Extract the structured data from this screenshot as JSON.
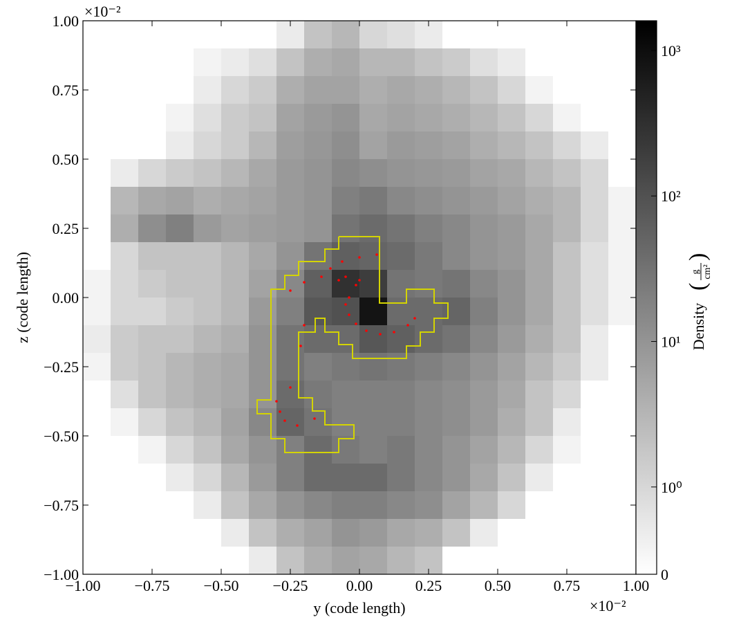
{
  "chart_data": {
    "type": "heatmap",
    "x_label": "y  (code length)",
    "y_label": "z  (code length)",
    "x_offset_label": "×10⁻²",
    "y_offset_label": "×10⁻²",
    "xlim": [
      -1.0,
      1.0
    ],
    "ylim": [
      -1.0,
      1.0
    ],
    "xticks": [
      {
        "value": -1.0,
        "label": "−1.00"
      },
      {
        "value": -0.75,
        "label": "−0.75"
      },
      {
        "value": -0.5,
        "label": "−0.50"
      },
      {
        "value": -0.25,
        "label": "−0.25"
      },
      {
        "value": 0,
        "label": "0.00"
      },
      {
        "value": 0.25,
        "label": "0.25"
      },
      {
        "value": 0.5,
        "label": "0.50"
      },
      {
        "value": 0.75,
        "label": "0.75"
      },
      {
        "value": 1.0,
        "label": "1.00"
      }
    ],
    "yticks": [
      {
        "value": -1.0,
        "label": "−1.00"
      },
      {
        "value": -0.75,
        "label": "−0.75"
      },
      {
        "value": -0.5,
        "label": "−0.50"
      },
      {
        "value": -0.25,
        "label": "−0.25"
      },
      {
        "value": 0,
        "label": "0.00"
      },
      {
        "value": 0.25,
        "label": "0.25"
      },
      {
        "value": 0.5,
        "label": "0.50"
      },
      {
        "value": 0.75,
        "label": "0.75"
      },
      {
        "value": 1.0,
        "label": "1.00"
      }
    ],
    "colorbar": {
      "label": "Density",
      "units_numerator": "g",
      "units_denominator": "cm²",
      "scale": "symlog",
      "lim": [
        0,
        1600
      ],
      "ticks": [
        0,
        {
          "value": 1,
          "label": "10⁰"
        },
        {
          "value": 10,
          "label": "10¹"
        },
        {
          "value": 100,
          "label": "10²"
        },
        {
          "value": 1000,
          "label": "10³"
        }
      ]
    },
    "values": [
      [
        0,
        0,
        0,
        0,
        0,
        0,
        0,
        0.5,
        2,
        3,
        1,
        0.8,
        0.5,
        0,
        0,
        0,
        0,
        0,
        0,
        0
      ],
      [
        0,
        0,
        0,
        0,
        0.3,
        0.5,
        0.8,
        2,
        4,
        5,
        3,
        3,
        2,
        1.5,
        0.8,
        0.5,
        0,
        0,
        0,
        0
      ],
      [
        0,
        0,
        0,
        0,
        0.5,
        1,
        1.5,
        4,
        6,
        6,
        4,
        5,
        4,
        3,
        2,
        1,
        0.3,
        0,
        0,
        0
      ],
      [
        0,
        0,
        0,
        0.3,
        0.8,
        1.5,
        2,
        6,
        8,
        10,
        5,
        6,
        5,
        4,
        3,
        2,
        1,
        0.3,
        0,
        0
      ],
      [
        0,
        0,
        0,
        0.5,
        1,
        1.5,
        3,
        7,
        9,
        12,
        6,
        8,
        7,
        6,
        4,
        3,
        2,
        1,
        0.5,
        0
      ],
      [
        0,
        0.5,
        1,
        1.5,
        2,
        3,
        5,
        8,
        10,
        15,
        12,
        10,
        9,
        8,
        6,
        5,
        3,
        2,
        1,
        0
      ],
      [
        0,
        3,
        5,
        6,
        4,
        5,
        6,
        8,
        10,
        20,
        25,
        15,
        12,
        10,
        8,
        6,
        4,
        3,
        1,
        0.3
      ],
      [
        0,
        4,
        12,
        20,
        8,
        6,
        7,
        8,
        10,
        30,
        40,
        30,
        20,
        15,
        10,
        8,
        5,
        3,
        1,
        0.3
      ],
      [
        0,
        1,
        2,
        2,
        2,
        3,
        5,
        10,
        30,
        60,
        50,
        40,
        25,
        15,
        10,
        8,
        5,
        2,
        0.8,
        0.3
      ],
      [
        0.3,
        1,
        1.5,
        2,
        2,
        3,
        6,
        15,
        60,
        300,
        200,
        30,
        25,
        30,
        15,
        10,
        5,
        2,
        0.8,
        0.3
      ],
      [
        0.3,
        1,
        1,
        1.5,
        2,
        3,
        8,
        20,
        80,
        100,
        800,
        40,
        40,
        50,
        20,
        10,
        5,
        2,
        0.8,
        0.3
      ],
      [
        0.5,
        1.5,
        2,
        2,
        3,
        4,
        10,
        30,
        40,
        40,
        80,
        60,
        40,
        30,
        15,
        8,
        4,
        2,
        0.5,
        0
      ],
      [
        0.3,
        1.5,
        2,
        3,
        4,
        5,
        10,
        30,
        20,
        25,
        30,
        25,
        20,
        15,
        10,
        6,
        3,
        1.5,
        0.5,
        0
      ],
      [
        0,
        0.8,
        2,
        3,
        4,
        5,
        10,
        40,
        25,
        20,
        20,
        20,
        15,
        12,
        8,
        5,
        2,
        1,
        0,
        0
      ],
      [
        0,
        0.3,
        1,
        2,
        3,
        6,
        15,
        50,
        30,
        20,
        20,
        20,
        15,
        12,
        8,
        4,
        2,
        0.5,
        0,
        0
      ],
      [
        0,
        0,
        0.3,
        1,
        2,
        5,
        10,
        20,
        40,
        25,
        20,
        25,
        15,
        10,
        6,
        3,
        1,
        0.3,
        0,
        0
      ],
      [
        0,
        0,
        0,
        0.5,
        1,
        3,
        8,
        20,
        40,
        40,
        40,
        25,
        15,
        10,
        5,
        2,
        0.5,
        0,
        0,
        0
      ],
      [
        0,
        0,
        0,
        0,
        0.5,
        2,
        5,
        10,
        15,
        20,
        20,
        15,
        12,
        6,
        3,
        1,
        0,
        0,
        0,
        0
      ],
      [
        0,
        0,
        0,
        0,
        0,
        0.5,
        2,
        4,
        6,
        10,
        8,
        5,
        4,
        2,
        0.5,
        0,
        0,
        0,
        0,
        0
      ],
      [
        0,
        0,
        0,
        0,
        0,
        0,
        0.5,
        2,
        4,
        6,
        5,
        3,
        2,
        0,
        0,
        0,
        0,
        0,
        0,
        0
      ]
    ],
    "contour": {
      "color": "#d4d400",
      "x": [
        -0.075,
        0.0725,
        0.0725,
        0.17,
        0.17,
        0.27,
        0.27,
        0.32,
        0.32,
        0.27,
        0.27,
        0.22,
        0.22,
        0.17,
        0.17,
        -0.025,
        -0.025,
        -0.075,
        -0.075,
        -0.125,
        -0.125,
        -0.16,
        -0.16,
        -0.22,
        -0.22,
        -0.17,
        -0.17,
        -0.125,
        -0.125,
        -0.02,
        -0.02,
        -0.075,
        -0.075,
        -0.27,
        -0.27,
        -0.32,
        -0.32,
        -0.37,
        -0.37,
        -0.32,
        -0.32,
        -0.27,
        -0.27,
        -0.22,
        -0.22,
        -0.125,
        -0.125,
        -0.075,
        -0.075
      ],
      "y": [
        0.22,
        0.22,
        -0.02,
        -0.02,
        0.03,
        0.03,
        -0.02,
        -0.02,
        -0.075,
        -0.075,
        -0.125,
        -0.125,
        -0.175,
        -0.175,
        -0.22,
        -0.22,
        -0.17,
        -0.17,
        -0.125,
        -0.125,
        -0.075,
        -0.075,
        -0.125,
        -0.125,
        -0.3625,
        -0.3625,
        -0.41,
        -0.41,
        -0.46,
        -0.46,
        -0.51,
        -0.51,
        -0.56,
        -0.56,
        -0.51,
        -0.51,
        -0.42,
        -0.42,
        -0.37,
        -0.37,
        0.03,
        0.03,
        0.08,
        0.08,
        0.13,
        0.13,
        0.175,
        0.175,
        0.22
      ]
    },
    "particles": {
      "color": "#ff0000",
      "x": [
        0.0625,
        0,
        -0.0625,
        -0.105,
        -0.1375,
        -0.2,
        -0.25,
        -0.0375,
        -0.05,
        -0.0375,
        -0.0125,
        0.025,
        0.075,
        0.125,
        0.175,
        0.2,
        0,
        -0.0125,
        -0.05,
        -0.075,
        -0.3,
        -0.2875,
        -0.27,
        -0.225,
        -0.1625,
        -0.25,
        -0.2,
        -0.2125
      ],
      "y": [
        0.155,
        0.145,
        0.13,
        0.105,
        0.075,
        0.055,
        0.025,
        0,
        -0.025,
        -0.0625,
        -0.095,
        -0.12,
        -0.1325,
        -0.125,
        -0.1,
        -0.075,
        0.0625,
        0.045,
        0.075,
        0.0625,
        -0.375,
        -0.4125,
        -0.445,
        -0.4625,
        -0.4375,
        -0.325,
        -0.1,
        -0.175
      ]
    }
  }
}
